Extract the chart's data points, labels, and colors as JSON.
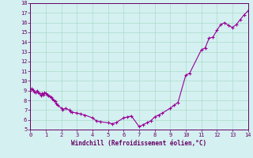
{
  "x": [
    0.0,
    0.083,
    0.167,
    0.25,
    0.333,
    0.417,
    0.5,
    0.583,
    0.667,
    0.75,
    0.833,
    0.917,
    1.0,
    1.083,
    1.167,
    1.25,
    1.333,
    1.417,
    1.5,
    1.583,
    1.667,
    1.75,
    2.0,
    2.083,
    2.25,
    2.5,
    2.583,
    2.667,
    3.0,
    3.25,
    3.5,
    4.0,
    4.25,
    4.5,
    5.0,
    5.25,
    5.5,
    6.0,
    6.25,
    6.5,
    7.0,
    7.25,
    7.5,
    7.75,
    8.0,
    8.25,
    8.5,
    9.0,
    9.25,
    9.5,
    10.0,
    10.25,
    11.0,
    11.25,
    11.5,
    11.75,
    12.0,
    12.25,
    12.5,
    12.75,
    13.0,
    13.25,
    13.5,
    13.75,
    14.0,
    14.25
  ],
  "y": [
    9.0,
    9.2,
    9.1,
    8.9,
    8.8,
    9.0,
    8.8,
    8.7,
    8.5,
    8.7,
    8.6,
    8.8,
    8.7,
    8.6,
    8.5,
    8.4,
    8.3,
    8.2,
    8.0,
    7.9,
    7.7,
    7.5,
    7.2,
    7.0,
    7.2,
    7.0,
    6.9,
    6.8,
    6.7,
    6.6,
    6.5,
    6.2,
    5.9,
    5.8,
    5.7,
    5.6,
    5.7,
    6.2,
    6.3,
    6.4,
    5.3,
    5.5,
    5.7,
    5.9,
    6.3,
    6.5,
    6.7,
    7.2,
    7.5,
    7.8,
    10.6,
    10.8,
    13.2,
    13.4,
    14.4,
    14.5,
    15.2,
    15.8,
    16.0,
    15.7,
    15.5,
    15.8,
    16.3,
    16.8,
    17.2,
    18.0
  ],
  "xlim": [
    0,
    14
  ],
  "ylim": [
    5,
    18
  ],
  "xticks": [
    0,
    1,
    2,
    3,
    4,
    5,
    6,
    7,
    8,
    9,
    10,
    11,
    12,
    13,
    14
  ],
  "yticks": [
    5,
    6,
    7,
    8,
    9,
    10,
    11,
    12,
    13,
    14,
    15,
    16,
    17,
    18
  ],
  "xlabel": "Windchill (Refroidissement éolien,°C)",
  "line_color": "#990099",
  "marker_color": "#990099",
  "bg_color": "#d4f0f0",
  "grid_color": "#aaddcc",
  "axis_color": "#660066",
  "tick_color": "#660066",
  "label_color": "#660066",
  "figsize": [
    3.2,
    2.0
  ],
  "dpi": 100
}
